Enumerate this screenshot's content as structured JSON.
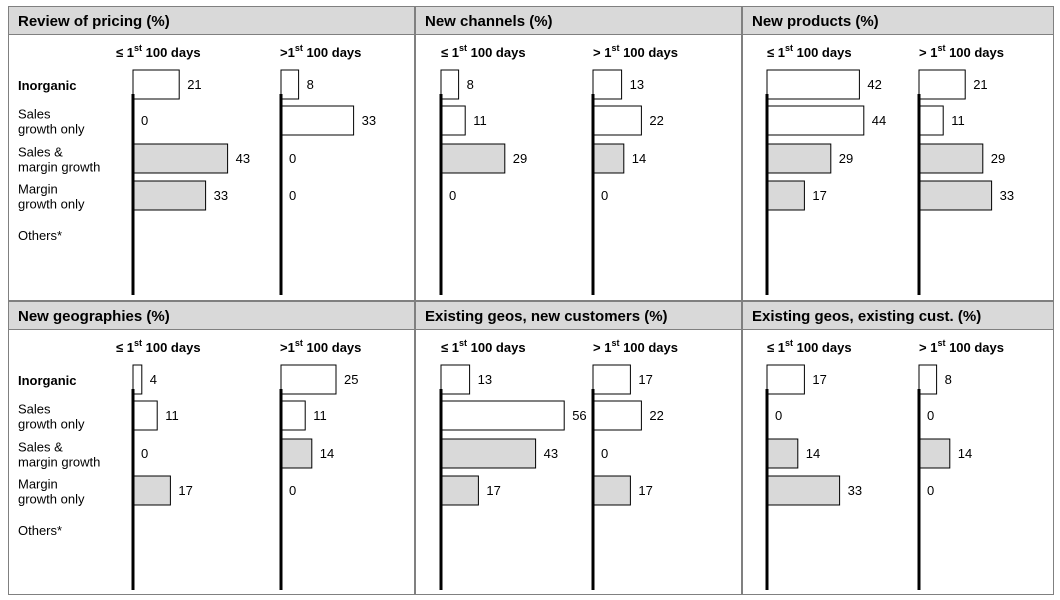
{
  "category_labels": [
    {
      "lines": [
        "Inorganic"
      ],
      "bold": true
    },
    {
      "lines": [
        "Sales",
        "growth only"
      ],
      "bold": false
    },
    {
      "lines": [
        "Sales &",
        "margin growth"
      ],
      "bold": false
    },
    {
      "lines": [
        "Margin",
        "growth only"
      ],
      "bold": false
    },
    {
      "lines": [
        "Others*"
      ],
      "bold": false
    }
  ],
  "colors": {
    "header_bg": "#d9d9d9",
    "bar_white": "#ffffff",
    "bar_grey": "#d9d9d9",
    "axis": "#000000",
    "border": "#808080"
  },
  "chart_data": [
    {
      "type": "bar",
      "orientation": "horizontal",
      "title": "Review of pricing (%)",
      "categories": [
        "Inorganic",
        "Sales growth only",
        "Sales & margin growth",
        "Margin growth only",
        "Others*"
      ],
      "series": [
        {
          "name": "≤ 1st 100 days",
          "label_base": "≤ 1",
          "label_sup": "st",
          "label_rest": " 100 days",
          "values": [
            21,
            0,
            43,
            33,
            null
          ]
        },
        {
          "name": ">1st 100 days",
          "label_base": ">1",
          "label_sup": "st",
          "label_rest": " 100 days",
          "values": [
            8,
            33,
            0,
            0,
            null
          ]
        }
      ]
    },
    {
      "type": "bar",
      "orientation": "horizontal",
      "title": "New channels (%)",
      "categories": [
        "Inorganic",
        "Sales growth only",
        "Sales & margin growth",
        "Margin growth only",
        "Others*"
      ],
      "series": [
        {
          "name": "≤ 1st 100 days",
          "label_base": "≤ 1",
          "label_sup": "st",
          "label_rest": " 100 days",
          "values": [
            8,
            11,
            29,
            0,
            null
          ]
        },
        {
          "name": "> 1st 100 days",
          "label_base": "> 1",
          "label_sup": "st",
          "label_rest": " 100 days",
          "values": [
            13,
            22,
            14,
            0,
            null
          ]
        }
      ]
    },
    {
      "type": "bar",
      "orientation": "horizontal",
      "title": "New products (%)",
      "categories": [
        "Inorganic",
        "Sales growth only",
        "Sales & margin growth",
        "Margin growth only",
        "Others*"
      ],
      "series": [
        {
          "name": "≤ 1st 100 days",
          "label_base": "≤ 1",
          "label_sup": "st",
          "label_rest": " 100 days",
          "values": [
            42,
            44,
            29,
            17,
            null
          ]
        },
        {
          "name": "> 1st 100 days",
          "label_base": "> 1",
          "label_sup": "st",
          "label_rest": " 100 days",
          "values": [
            21,
            11,
            29,
            33,
            null
          ]
        }
      ]
    },
    {
      "type": "bar",
      "orientation": "horizontal",
      "title": "New geographies (%)",
      "categories": [
        "Inorganic",
        "Sales growth only",
        "Sales & margin growth",
        "Margin growth only",
        "Others*"
      ],
      "series": [
        {
          "name": "≤ 1st 100 days",
          "label_base": "≤ 1",
          "label_sup": "st",
          "label_rest": " 100 days",
          "values": [
            4,
            11,
            0,
            17,
            null
          ]
        },
        {
          "name": ">1st 100 days",
          "label_base": ">1",
          "label_sup": "st",
          "label_rest": " 100 days",
          "values": [
            25,
            11,
            14,
            0,
            null
          ]
        }
      ]
    },
    {
      "type": "bar",
      "orientation": "horizontal",
      "title": "Existing geos, new customers (%)",
      "categories": [
        "Inorganic",
        "Sales growth only",
        "Sales & margin growth",
        "Margin growth only",
        "Others*"
      ],
      "series": [
        {
          "name": "≤ 1st 100 days",
          "label_base": "≤ 1",
          "label_sup": "st",
          "label_rest": " 100 days",
          "values": [
            13,
            56,
            43,
            17,
            null
          ]
        },
        {
          "name": "> 1st 100 days",
          "label_base": "> 1",
          "label_sup": "st",
          "label_rest": " 100 days",
          "values": [
            17,
            22,
            0,
            17,
            null
          ]
        }
      ]
    },
    {
      "type": "bar",
      "orientation": "horizontal",
      "title": "Existing geos, existing cust. (%)",
      "categories": [
        "Inorganic",
        "Sales growth only",
        "Sales & margin growth",
        "Margin growth only",
        "Others*"
      ],
      "series": [
        {
          "name": "≤ 1st 100 days",
          "label_base": "≤ 1",
          "label_sup": "st",
          "label_rest": " 100 days",
          "values": [
            17,
            0,
            14,
            33,
            null
          ]
        },
        {
          "name": "> 1st 100 days",
          "label_base": "> 1",
          "label_sup": "st",
          "label_rest": " 100 days",
          "values": [
            8,
            0,
            14,
            0,
            null
          ]
        }
      ]
    }
  ]
}
